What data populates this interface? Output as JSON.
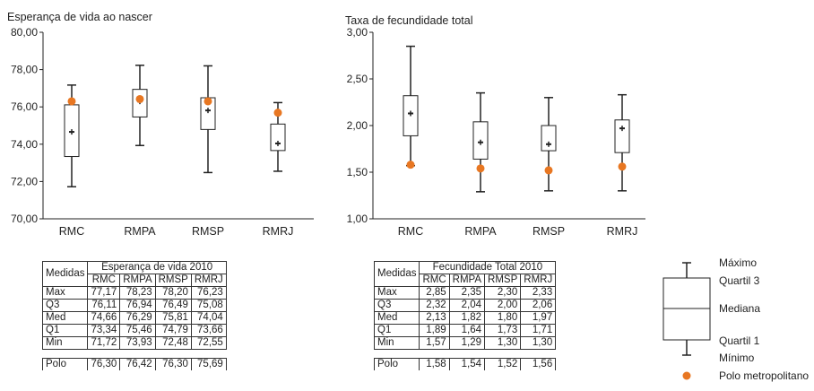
{
  "chart_data": [
    {
      "type": "box",
      "title": "Esperança de vida ao nascer",
      "categories": [
        "RMC",
        "RMPA",
        "RMSP",
        "RMRJ"
      ],
      "ylim": [
        70,
        80
      ],
      "yticks": [
        "70,00",
        "72,00",
        "74,00",
        "76,00",
        "78,00",
        "80,00"
      ],
      "max": [
        77.17,
        78.23,
        78.2,
        76.23
      ],
      "q3": [
        76.11,
        76.94,
        76.49,
        75.08
      ],
      "median": [
        74.66,
        76.29,
        75.81,
        74.04
      ],
      "q1": [
        73.34,
        75.46,
        74.79,
        73.66
      ],
      "min": [
        71.72,
        73.93,
        72.48,
        72.55
      ],
      "polo": [
        76.3,
        76.42,
        76.3,
        75.69
      ],
      "grid": false,
      "colors": {
        "box": "#222222",
        "polo": "#e87722"
      }
    },
    {
      "type": "box",
      "title": "Taxa de fecundidade total",
      "categories": [
        "RMC",
        "RMPA",
        "RMSP",
        "RMRJ"
      ],
      "ylim": [
        1,
        3
      ],
      "yticks": [
        "1,00",
        "1,50",
        "2,00",
        "2,50",
        "3,00"
      ],
      "max": [
        2.85,
        2.35,
        2.3,
        2.33
      ],
      "q3": [
        2.32,
        2.04,
        2.0,
        2.06
      ],
      "median": [
        2.13,
        1.82,
        1.8,
        1.97
      ],
      "q1": [
        1.89,
        1.64,
        1.73,
        1.71
      ],
      "min": [
        1.57,
        1.29,
        1.3,
        1.3
      ],
      "polo": [
        1.58,
        1.54,
        1.52,
        1.56
      ],
      "grid": false,
      "colors": {
        "box": "#222222",
        "polo": "#e87722"
      }
    }
  ],
  "tables": {
    "esperanca": {
      "medidas_label": "Medidas",
      "header": "Esperança de vida 2010",
      "cols": [
        "RMC",
        "RMPA",
        "RMSP",
        "RMRJ"
      ],
      "rows": [
        {
          "label": "Max",
          "values": [
            "77,17",
            "78,23",
            "78,20",
            "76,23"
          ]
        },
        {
          "label": "Q3",
          "values": [
            "76,11",
            "76,94",
            "76,49",
            "75,08"
          ]
        },
        {
          "label": "Med",
          "values": [
            "74,66",
            "76,29",
            "75,81",
            "74,04"
          ]
        },
        {
          "label": "Q1",
          "values": [
            "73,34",
            "75,46",
            "74,79",
            "73,66"
          ]
        },
        {
          "label": "Min",
          "values": [
            "71,72",
            "73,93",
            "72,48",
            "72,55"
          ]
        }
      ],
      "polo": {
        "label": "Polo",
        "values": [
          "76,30",
          "76,42",
          "76,30",
          "75,69"
        ]
      }
    },
    "fecundidade": {
      "medidas_label": "Medidas",
      "header": "Fecundidade Total 2010",
      "cols": [
        "RMC",
        "RMPA",
        "RMSP",
        "RMRJ"
      ],
      "rows": [
        {
          "label": "Max",
          "values": [
            "2,85",
            "2,35",
            "2,30",
            "2,33"
          ]
        },
        {
          "label": "Q3",
          "values": [
            "2,32",
            "2,04",
            "2,00",
            "2,06"
          ]
        },
        {
          "label": "Med",
          "values": [
            "2,13",
            "1,82",
            "1,80",
            "1,97"
          ]
        },
        {
          "label": "Q1",
          "values": [
            "1,89",
            "1,64",
            "1,73",
            "1,71"
          ]
        },
        {
          "label": "Min",
          "values": [
            "1,57",
            "1,29",
            "1,30",
            "1,30"
          ]
        }
      ],
      "polo": {
        "label": "Polo",
        "values": [
          "1,58",
          "1,54",
          "1,52",
          "1,56"
        ]
      }
    }
  },
  "legend": {
    "maximo": "Máximo",
    "quartil3": "Quartil 3",
    "mediana": "Mediana",
    "quartil1": "Quartil 1",
    "minimo": "Mínimo",
    "polo": "Polo metropolitano"
  }
}
